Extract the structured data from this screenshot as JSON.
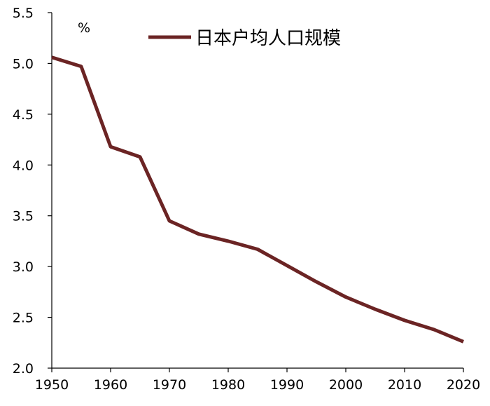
{
  "chart_data": {
    "type": "line",
    "title": "",
    "xlabel": "",
    "ylabel": "%",
    "x": [
      1950,
      1955,
      1960,
      1965,
      1970,
      1975,
      1980,
      1985,
      1990,
      1995,
      2000,
      2005,
      2010,
      2015,
      2020
    ],
    "series": [
      {
        "name": "日本户均人口规模",
        "color": "#6b2424",
        "values": [
          5.06,
          4.97,
          4.18,
          4.08,
          3.45,
          3.32,
          3.25,
          3.17,
          3.01,
          2.85,
          2.7,
          2.58,
          2.47,
          2.38,
          2.26
        ]
      }
    ],
    "xlim": [
      1950,
      2020
    ],
    "ylim": [
      2.0,
      5.5
    ],
    "xticks": [
      "1950",
      "1960",
      "1970",
      "1980",
      "1990",
      "2000",
      "2010",
      "2020"
    ],
    "yticks": [
      "2.0",
      "2.5",
      "3.0",
      "3.5",
      "4.0",
      "4.5",
      "5.0",
      "5.5"
    ],
    "grid": false,
    "legend_position": "top-center"
  }
}
